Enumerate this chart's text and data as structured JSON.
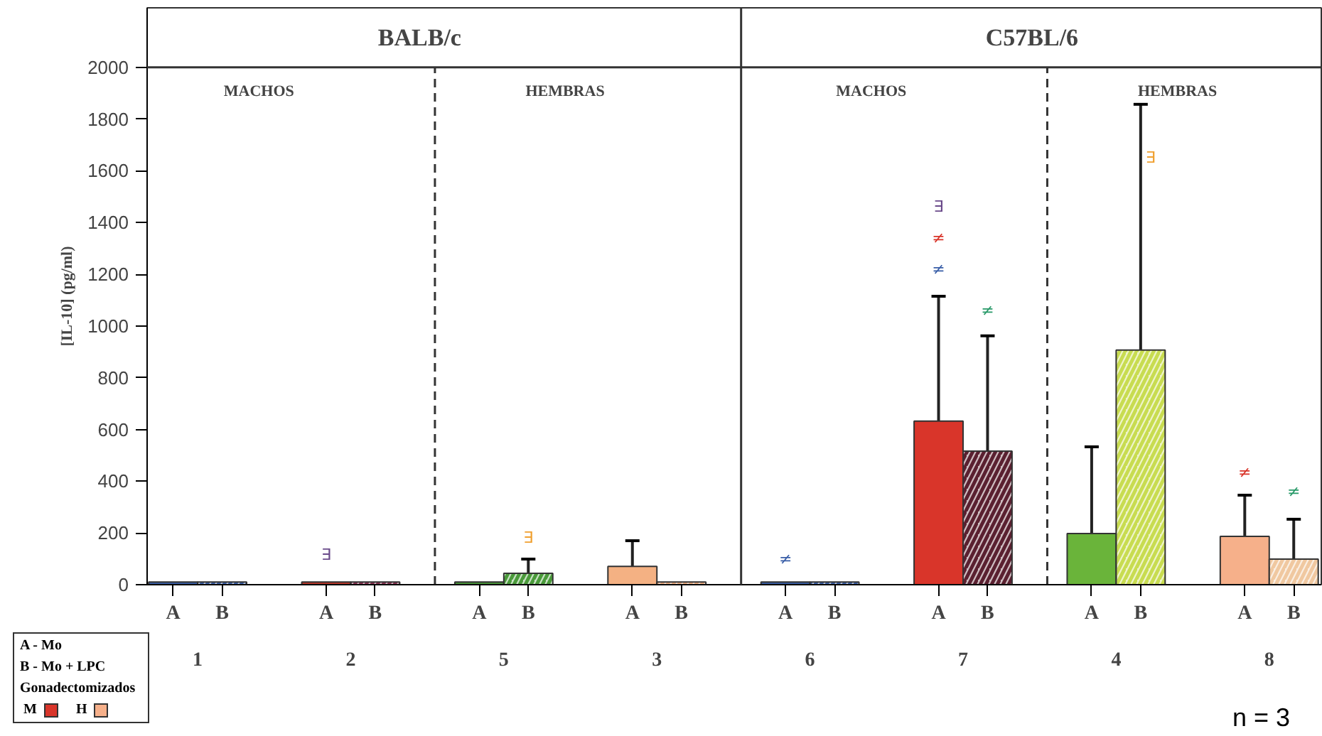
{
  "chart_data": {
    "type": "bar",
    "ylabel": "[IL-10] (pg/ml)",
    "categories": [
      "1",
      "2",
      "5",
      "3",
      "6",
      "7",
      "4",
      "8"
    ],
    "series": [
      {
        "name": "A",
        "colors": [
          "#3a5fa8",
          "#c0392b",
          "#4a9a3a",
          "#f4b183",
          "#3a5fa8",
          "#d9352a",
          "#6ab43a",
          "#f6b08a"
        ],
        "values": [
          10,
          10,
          10,
          71,
          10,
          632,
          198,
          187
        ],
        "errors": [
          null,
          null,
          null,
          [
            71,
            170
          ],
          null,
          [
            632,
            1115
          ],
          [
            198,
            533
          ],
          [
            187,
            346
          ]
        ]
      },
      {
        "name": "B",
        "colors": [
          "#3a5fa8",
          "#8a3050",
          "#4a9a3a",
          "#f4b183",
          "#3a5fa8",
          "#5a2030",
          "#c8dc50",
          "#f0c8a0"
        ],
        "values": [
          10,
          10,
          44,
          10,
          10,
          516,
          907,
          99
        ],
        "errors": [
          null,
          null,
          [
            44,
            99
          ],
          null,
          null,
          [
            516,
            962
          ],
          [
            907,
            1857
          ],
          [
            99,
            253
          ]
        ]
      }
    ],
    "ylim": [
      0,
      2230
    ],
    "yticks": [
      0,
      200,
      400,
      600,
      800,
      1000,
      1200,
      1400,
      1600,
      1800,
      2000
    ],
    "annotations": [
      "BALB/c",
      "C57BL/6",
      "MACHOS",
      "HEMBRAS",
      "MACHOS",
      "HEMBRAS",
      "A - Mo",
      "B - Mo + LPC",
      "Gonadectomizados",
      "M",
      "H",
      "n = 3",
      "∃",
      "∃",
      "≠",
      "∃",
      "≠",
      "≠",
      "≠",
      "∃",
      "≠",
      "≠"
    ]
  }
}
